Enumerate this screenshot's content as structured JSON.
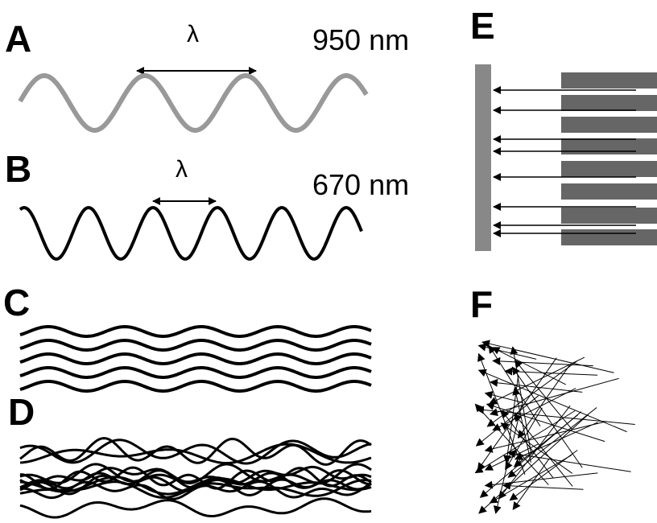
{
  "panels": {
    "a": {
      "label": "A",
      "symbol": "λ",
      "wavelength": "950 nm"
    },
    "b": {
      "label": "B",
      "symbol": "λ",
      "wavelength": "670 nm"
    },
    "c": {
      "label": "C"
    },
    "d": {
      "label": "D"
    },
    "e": {
      "label": "E"
    },
    "f": {
      "label": "F"
    }
  }
}
